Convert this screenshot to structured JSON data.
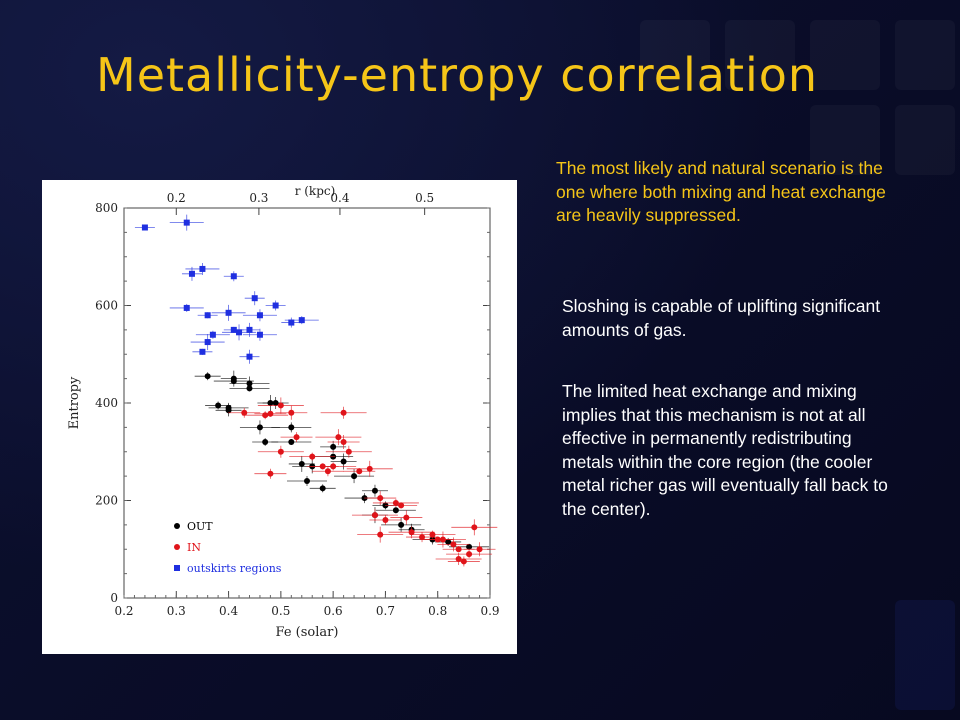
{
  "slide": {
    "title": "Metallicity-entropy correlation",
    "note_yellow": "The most likely and natural scenario is the one where both mixing and heat exchange are heavily suppressed.",
    "note_white_1": "Sloshing is capable of uplifting significant amounts of gas.",
    "note_white_2": "The limited heat exchange and mixing implies that this mechanism is not at all effective in permanently redistributing metals within the core region (the cooler metal richer gas will eventually fall back to the center).",
    "colors": {
      "background": "#0a0d26",
      "title": "#f5c518",
      "note_yellow": "#f5c518",
      "note_white": "#ffffff"
    }
  },
  "chart_data": {
    "type": "scatter",
    "xlabel": "Fe (solar)",
    "ylabel": "Entropy",
    "top_axis_label": "r (kpc)",
    "xlim": [
      0.2,
      0.9
    ],
    "ylim": [
      0,
      800
    ],
    "xticks": [
      "0.2",
      "0.3",
      "0.4",
      "0.5",
      "0.6",
      "0.7",
      "0.8",
      "0.9"
    ],
    "yticks": [
      "0",
      "200",
      "400",
      "600",
      "800"
    ],
    "top_ticks": [
      {
        "label": "0.2",
        "fe": 0.3
      },
      {
        "label": "0.3",
        "fe": 0.458
      },
      {
        "label": "0.4",
        "fe": 0.613
      },
      {
        "label": "0.5",
        "fe": 0.775
      }
    ],
    "legend_position": "bottom-left",
    "series": [
      {
        "name": "outskirts regions",
        "marker": "square",
        "color": "#1f2fe0",
        "x": [
          0.24,
          0.32,
          0.33,
          0.35,
          0.41,
          0.32,
          0.36,
          0.4,
          0.45,
          0.46,
          0.49,
          0.37,
          0.41,
          0.42,
          0.44,
          0.46,
          0.52,
          0.54,
          0.35,
          0.36,
          0.44
        ],
        "y": [
          760,
          770,
          665,
          675,
          660,
          595,
          580,
          585,
          615,
          580,
          600,
          540,
          550,
          545,
          550,
          540,
          565,
          570,
          505,
          525,
          495
        ]
      },
      {
        "name": "OUT",
        "marker": "circle",
        "color": "#000000",
        "x": [
          0.36,
          0.41,
          0.41,
          0.44,
          0.4,
          0.4,
          0.38,
          0.44,
          0.48,
          0.46,
          0.49,
          0.52,
          0.47,
          0.52,
          0.54,
          0.56,
          0.6,
          0.55,
          0.58,
          0.6,
          0.62,
          0.64,
          0.68,
          0.66,
          0.7,
          0.72,
          0.68,
          0.73,
          0.75,
          0.79,
          0.82,
          0.86
        ],
        "y": [
          455,
          445,
          450,
          440,
          385,
          390,
          395,
          430,
          400,
          350,
          400,
          350,
          320,
          320,
          275,
          270,
          310,
          240,
          225,
          290,
          280,
          250,
          220,
          205,
          190,
          180,
          170,
          150,
          140,
          120,
          115,
          105
        ]
      },
      {
        "name": "IN",
        "marker": "circle",
        "color": "#e0141a",
        "x": [
          0.43,
          0.47,
          0.48,
          0.5,
          0.52,
          0.5,
          0.53,
          0.56,
          0.58,
          0.61,
          0.62,
          0.63,
          0.59,
          0.6,
          0.65,
          0.67,
          0.69,
          0.68,
          0.7,
          0.72,
          0.73,
          0.69,
          0.74,
          0.75,
          0.77,
          0.79,
          0.8,
          0.81,
          0.83,
          0.84,
          0.85,
          0.86,
          0.84,
          0.87,
          0.88,
          0.62,
          0.48
        ],
        "y": [
          380,
          375,
          378,
          395,
          380,
          300,
          330,
          290,
          270,
          330,
          320,
          300,
          260,
          270,
          260,
          265,
          205,
          170,
          160,
          195,
          190,
          130,
          165,
          135,
          125,
          130,
          120,
          120,
          110,
          80,
          75,
          90,
          100,
          145,
          100,
          380,
          255
        ]
      }
    ]
  }
}
